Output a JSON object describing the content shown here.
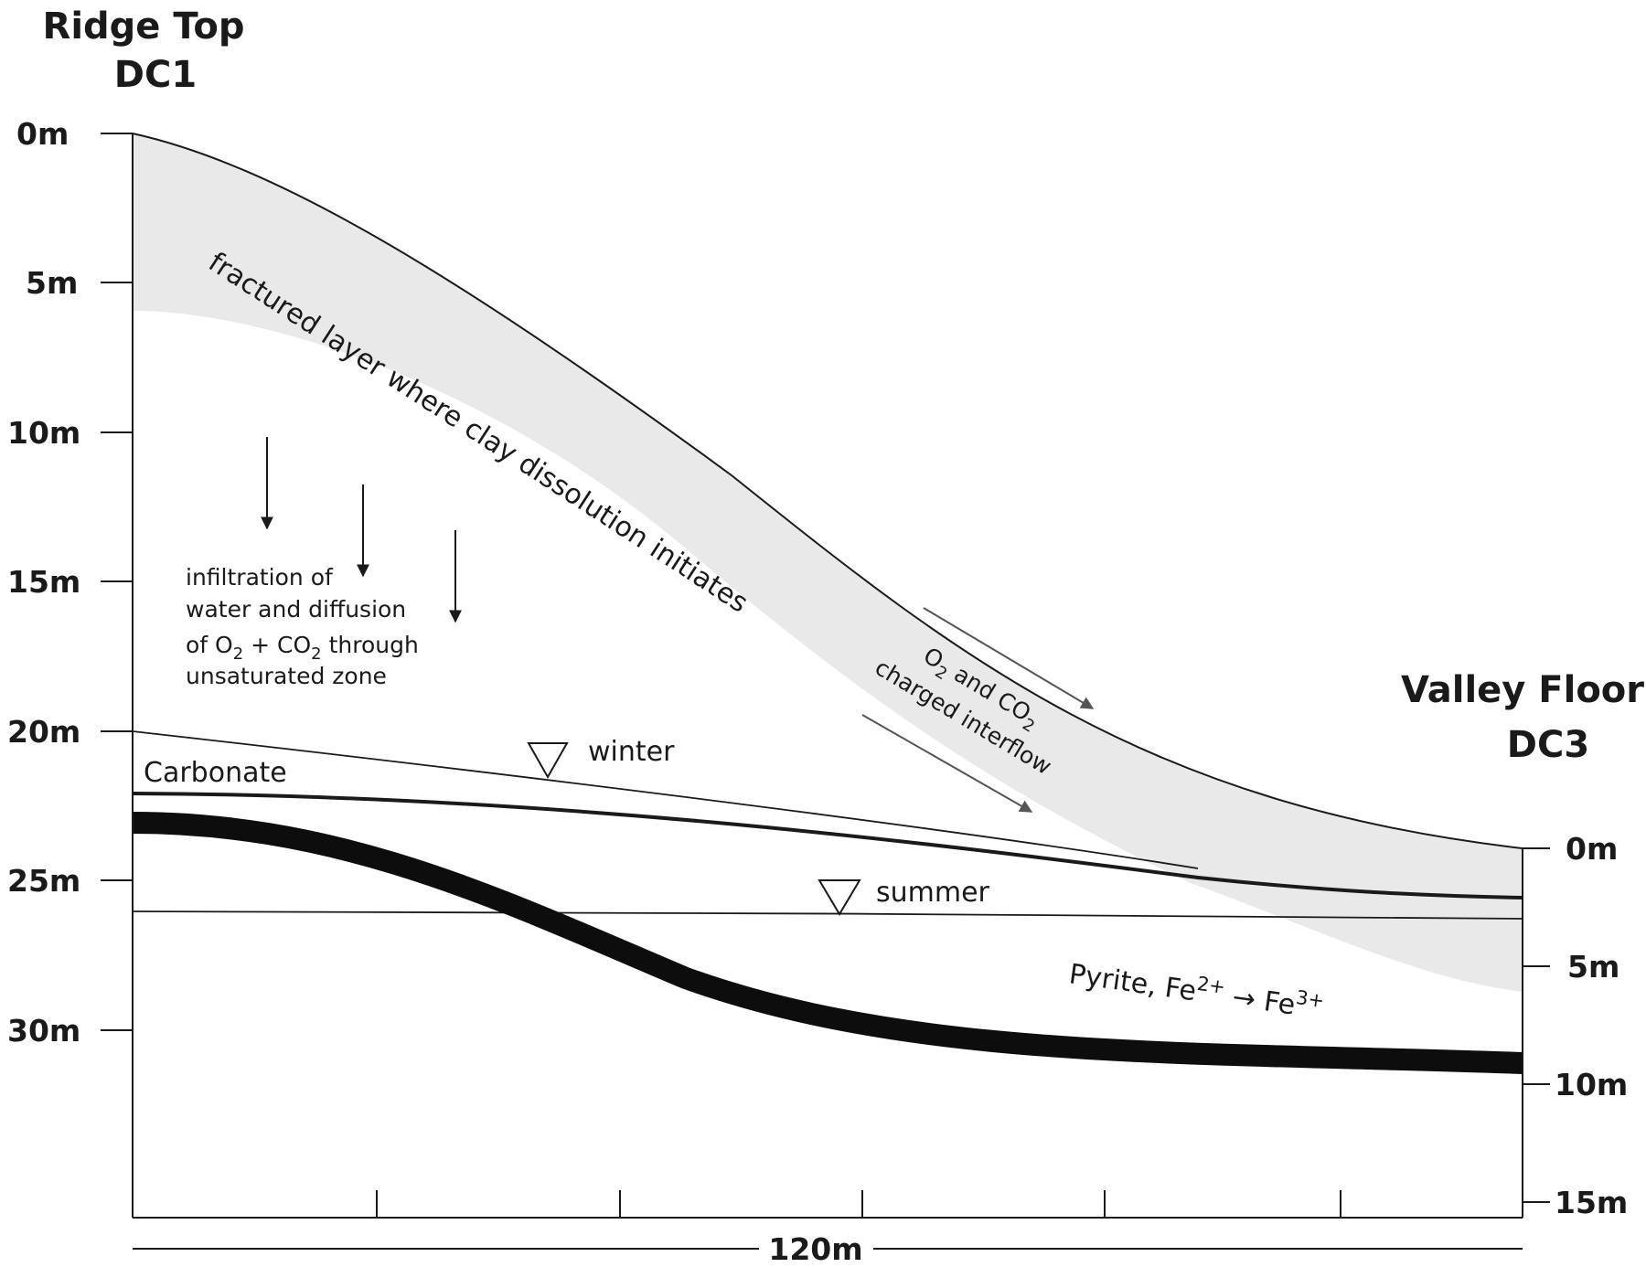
{
  "left_column": {
    "title_line1": "Ridge Top",
    "title_line2": "DC1",
    "depth_ticks": [
      "0m",
      "5m",
      "10m",
      "15m",
      "20m",
      "25m",
      "30m"
    ]
  },
  "right_column": {
    "title_line1": "Valley Floor",
    "title_line2": "DC3",
    "depth_ticks": [
      "0m",
      "5m",
      "10m",
      "15m"
    ]
  },
  "scale_bar": {
    "label": "120m"
  },
  "fractured_layer_label": "fractured layer where clay dissolution initiates",
  "infiltration_note": {
    "line1": "infiltration of",
    "line2": "water and diffusion",
    "line3_a": "of O",
    "line3_sub1": "2",
    "line3_b": " + CO",
    "line3_sub2": "2",
    "line3_c": " through",
    "line4": "unsaturated zone"
  },
  "interflow_note": {
    "l1_a": "O",
    "l1_sub1": "2",
    "l1_b": "  and CO",
    "l1_sub2": "2",
    "line2": "charged interflow"
  },
  "water_tables": {
    "winter": "winter",
    "summer": "summer"
  },
  "carbonate_label": "Carbonate",
  "pyrite_label": {
    "a": "Pyrite,  Fe",
    "sup1": "2+",
    "arrow": " → ",
    "b": "Fe",
    "sup2": "3+"
  },
  "colors": {
    "fractured_fill": "#e9e9e9",
    "line": "#1a1a1a",
    "arrow_grey": "#555555"
  }
}
